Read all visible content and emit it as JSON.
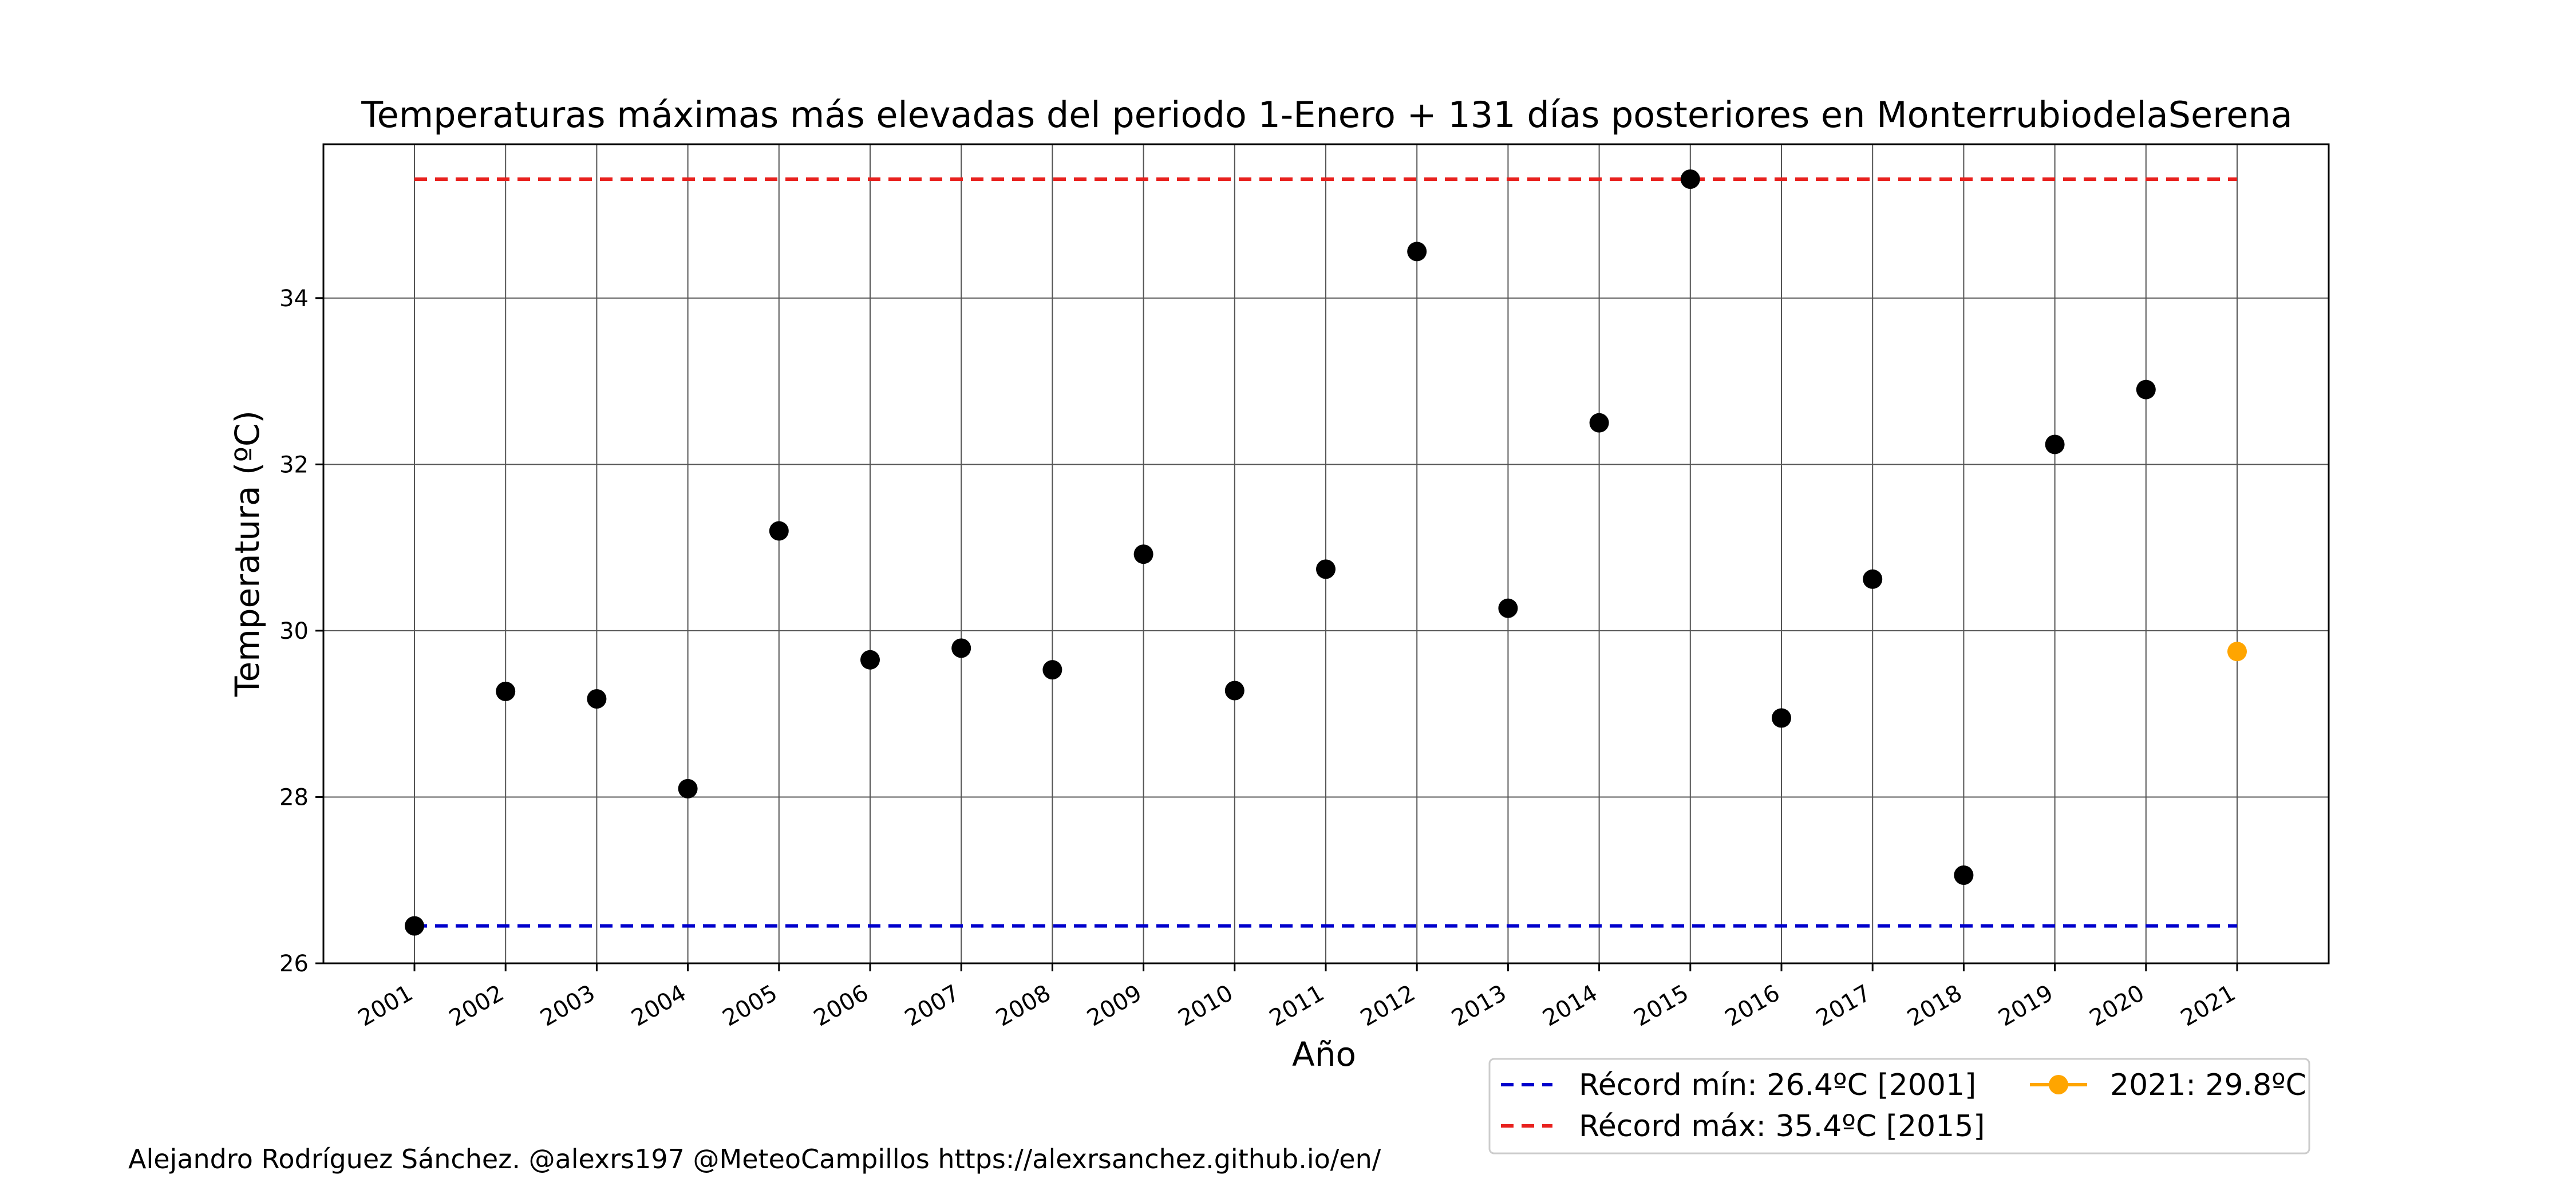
{
  "chart_data": {
    "type": "scatter",
    "title": "Temperaturas máximas más elevadas del periodo 1-Enero + 131 días posteriores en MonterrubiodelaSerena",
    "xlabel": "Año",
    "ylabel": "Temperatura (ºC)",
    "ylim": [
      26,
      35.85
    ],
    "yticks": [
      26,
      28,
      30,
      32,
      34
    ],
    "grid": true,
    "categories": [
      "2001",
      "2002",
      "2003",
      "2004",
      "2005",
      "2006",
      "2007",
      "2008",
      "2009",
      "2010",
      "2011",
      "2012",
      "2013",
      "2014",
      "2015",
      "2016",
      "2017",
      "2018",
      "2019",
      "2020",
      "2021"
    ],
    "series": [
      {
        "values": [
          26.45,
          29.27,
          29.18,
          28.1,
          31.2,
          29.65,
          29.79,
          29.53,
          30.92,
          29.28,
          30.74,
          34.56,
          30.27,
          32.5,
          35.43,
          28.95,
          30.62,
          27.06,
          32.24,
          32.9,
          null
        ],
        "color": "#000000"
      },
      {
        "name": "2021: 29.8ºC",
        "values": [
          null,
          null,
          null,
          null,
          null,
          null,
          null,
          null,
          null,
          null,
          null,
          null,
          null,
          null,
          null,
          null,
          null,
          null,
          null,
          null,
          29.75
        ],
        "color": "#FFA500"
      }
    ],
    "reference_lines": [
      {
        "name": "Récord mín: 26.4ºC [2001]",
        "value": 26.45,
        "color": "#0000CC",
        "style": "dashed"
      },
      {
        "name": "Récord máx: 35.4ºC [2015]",
        "value": 35.43,
        "color": "#E8211E",
        "style": "dashed"
      }
    ],
    "legend_position": "bottom-right"
  },
  "footer": {
    "credit": "Alejandro Rodríguez Sánchez. @alexrs197 @MeteoCampillos   https://alexrsanchez.github.io/en/"
  }
}
